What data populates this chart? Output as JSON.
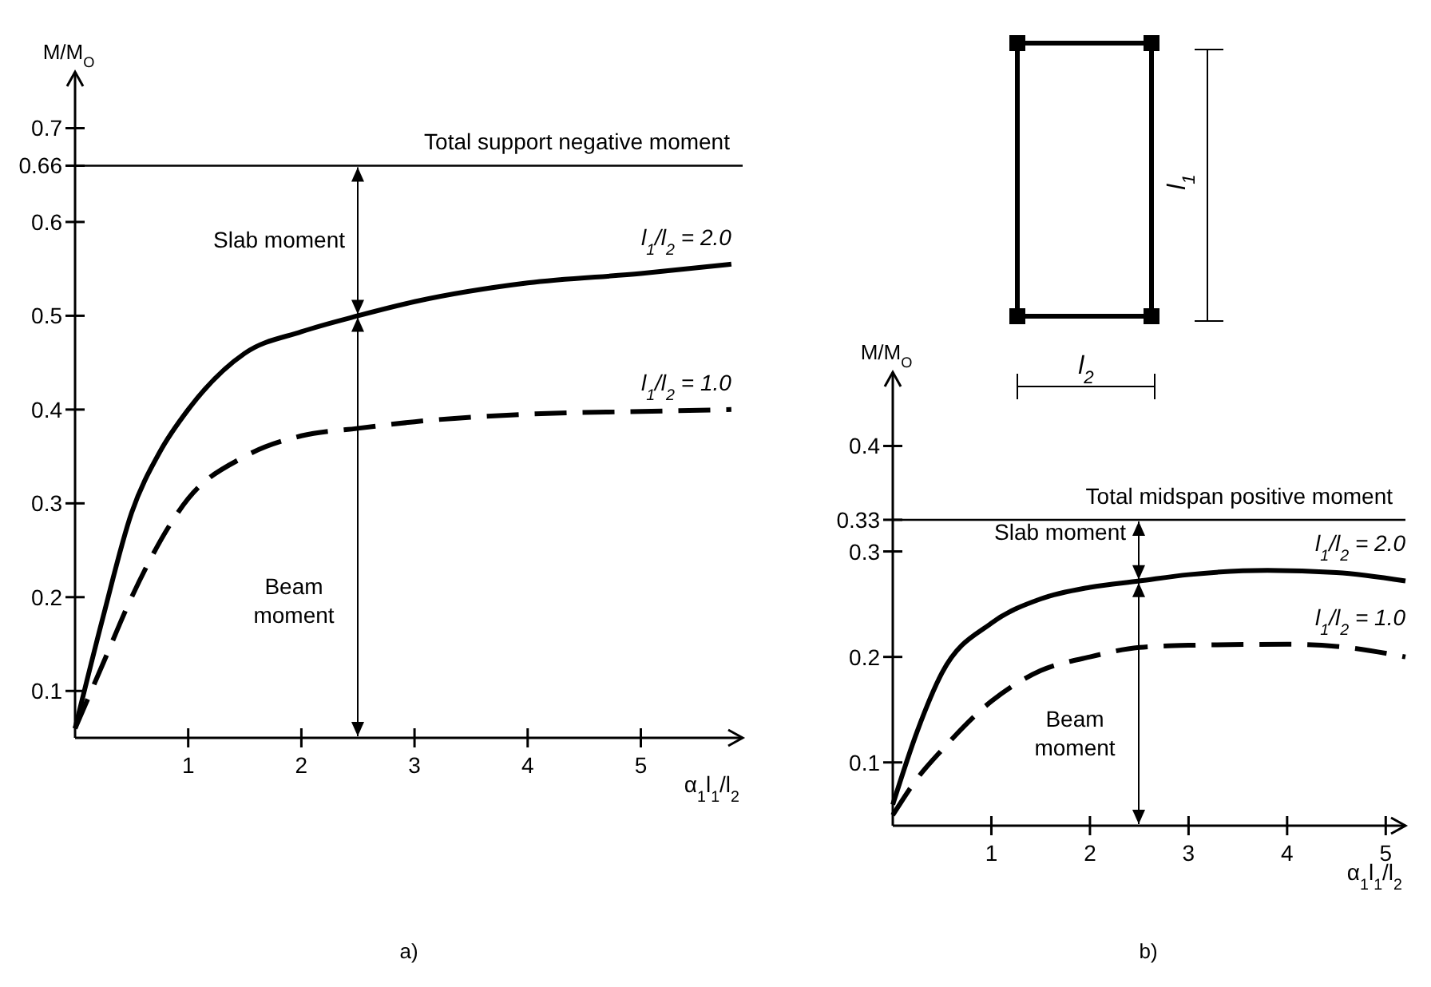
{
  "chart_data": [
    {
      "type": "line",
      "title": "a)",
      "xlabel": "α$_{1}$l$_{1}$/l$_{2}$",
      "ylabel": "M/M$_{O}$",
      "xlim": [
        0,
        5.9
      ],
      "ylim": [
        0.05,
        0.76
      ],
      "xticks": [
        1,
        2,
        3,
        4,
        5
      ],
      "yticks": [
        0.1,
        0.2,
        0.3,
        0.4,
        0.5,
        0.6,
        0.66,
        0.7
      ],
      "grid": false,
      "ref_lines": [
        {
          "axis": "y",
          "value": 0.66,
          "label": "Total support negative moment"
        }
      ],
      "annotations": [
        "Slab moment",
        "Beam moment"
      ],
      "series": [
        {
          "name": "l$_{1}$/l$_{2}$ = 2.0",
          "color": "#000000",
          "line_style": "solid",
          "x": [
            0,
            0.25,
            0.5,
            0.75,
            1,
            1.5,
            2,
            2.5,
            3,
            4,
            5,
            5.8
          ],
          "values": [
            0.06,
            0.18,
            0.29,
            0.355,
            0.4,
            0.46,
            0.483,
            0.5,
            0.515,
            0.535,
            0.545,
            0.555
          ]
        },
        {
          "name": "l$_{1}$/l$_{2}$ = 1.0",
          "color": "#000000",
          "line_style": "dashed",
          "x": [
            0,
            0.25,
            0.5,
            1,
            1.5,
            2,
            2.5,
            3,
            4,
            5,
            5.8
          ],
          "values": [
            0.06,
            0.13,
            0.2,
            0.305,
            0.35,
            0.372,
            0.38,
            0.387,
            0.395,
            0.398,
            0.4
          ]
        }
      ]
    },
    {
      "type": "line",
      "title": "b)",
      "xlabel": "α$_{1}$l$_{1}$/l$_{2}$",
      "ylabel": "M/M$_{O}$",
      "xlim": [
        0,
        5.2
      ],
      "ylim": [
        0.04,
        0.47
      ],
      "xticks": [
        1,
        2,
        3,
        4,
        5
      ],
      "yticks": [
        0.1,
        0.2,
        0.3,
        0.33,
        0.4
      ],
      "grid": false,
      "ref_lines": [
        {
          "axis": "y",
          "value": 0.33,
          "label": "Total midspan positive moment"
        }
      ],
      "annotations": [
        "Slab moment",
        "Beam moment",
        "l$_{1}$",
        "l$_{2}$"
      ],
      "series": [
        {
          "name": "l$_{1}$/l$_{2}$ = 2.0",
          "color": "#000000",
          "line_style": "solid",
          "x": [
            0,
            0.25,
            0.5,
            1,
            1.5,
            2,
            2.5,
            3,
            3.8,
            4.5,
            5.2
          ],
          "values": [
            0.06,
            0.13,
            0.185,
            0.232,
            0.255,
            0.266,
            0.272,
            0.278,
            0.282,
            0.28,
            0.272
          ]
        },
        {
          "name": "l$_{1}$/l$_{2}$ = 1.0",
          "color": "#000000",
          "line_style": "dashed",
          "x": [
            0,
            0.25,
            0.5,
            1,
            1.5,
            2,
            2.5,
            3,
            4,
            4.5,
            5.2
          ],
          "values": [
            0.05,
            0.085,
            0.112,
            0.158,
            0.187,
            0.2,
            0.209,
            0.211,
            0.212,
            0.21,
            0.2
          ]
        }
      ]
    }
  ]
}
